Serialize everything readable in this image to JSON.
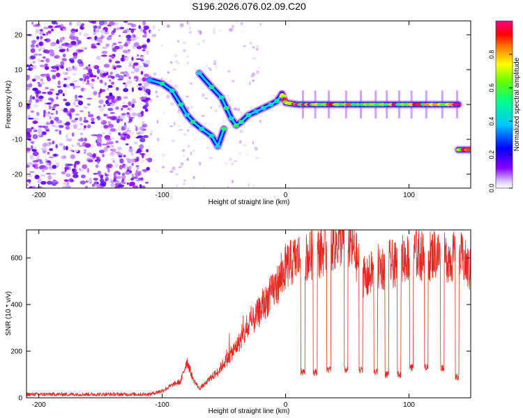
{
  "title": "S196.2026.076.02.09.C20",
  "chart_data": [
    {
      "type": "heatmap",
      "title": "S196.2026.076.02.09.C20",
      "xlabel": "Height of straight line (km)",
      "ylabel": "Frequency (Hz)",
      "xlim": [
        -210,
        150
      ],
      "ylim": [
        -24,
        24
      ],
      "xticks": [
        -200,
        -100,
        0,
        100
      ],
      "yticks": [
        -20,
        -10,
        0,
        10,
        20
      ],
      "colorbar": {
        "label": "Normalized spectral amplitude",
        "range": [
          0,
          1
        ],
        "ticks": [
          "0.0",
          "0.2",
          "0.4",
          "0.6",
          "0.8"
        ],
        "colors": [
          "#c8c8ff",
          "#8800ff",
          "#0000ff",
          "#00c8ff",
          "#00ff80",
          "#80ff00",
          "#ffff00",
          "#ff8000",
          "#ff0000",
          "#ff0088"
        ]
      },
      "noise_region": {
        "x_from": -210,
        "x_to": -110,
        "f_from": -24,
        "f_to": 24,
        "amplitude": 0.15
      },
      "tracks": [
        {
          "x": [
            -110,
            -100,
            -92,
            -85,
            -80,
            -75,
            -68,
            -60,
            -55,
            -50
          ],
          "f": [
            7,
            6,
            4,
            0,
            -3,
            -5,
            -7,
            -9,
            -12,
            -7
          ],
          "amplitude": 0.4
        },
        {
          "x": [
            -70,
            -60,
            -52,
            -48,
            -44,
            -40,
            -36,
            -30,
            -24,
            -18,
            -12,
            -7,
            -3
          ],
          "f": [
            9,
            5,
            2,
            -1,
            -4,
            -6,
            -5,
            -3,
            -2,
            -1,
            0,
            1,
            3
          ],
          "amplitude": 0.45
        },
        {
          "x": [
            -3,
            0,
            10,
            20,
            40,
            60,
            80,
            100,
            120,
            140
          ],
          "f": [
            3,
            0.5,
            0,
            0,
            0,
            0,
            0,
            0,
            0,
            0
          ],
          "amplitude": 0.85
        },
        {
          "x": [
            140,
            150
          ],
          "f": [
            -13,
            -13
          ],
          "amplitude": 0.85
        }
      ]
    },
    {
      "type": "line",
      "xlabel": "Height of straight line (km)",
      "ylabel": "SNR (10 * v/v)",
      "xlim": [
        -210,
        150
      ],
      "ylim": [
        0,
        720
      ],
      "xticks": [
        -200,
        -100,
        0,
        100
      ],
      "yticks": [
        0,
        200,
        400,
        600
      ],
      "line_color": "#e8261f",
      "x": [
        -210,
        -190,
        -170,
        -150,
        -130,
        -110,
        -100,
        -90,
        -85,
        -80,
        -75,
        -70,
        -65,
        -60,
        -55,
        -50,
        -45,
        -40,
        -35,
        -30,
        -25,
        -20,
        -15,
        -10,
        -5,
        0,
        5,
        10,
        15,
        20,
        25,
        30,
        35,
        40,
        45,
        50,
        55,
        60,
        65,
        70,
        75,
        80,
        85,
        90,
        95,
        100,
        105,
        110,
        115,
        120,
        125,
        130,
        135,
        140,
        145,
        150
      ],
      "y": [
        15,
        15,
        15,
        15,
        15,
        15,
        30,
        60,
        70,
        160,
        80,
        40,
        60,
        90,
        110,
        150,
        180,
        220,
        260,
        300,
        340,
        380,
        420,
        460,
        500,
        560,
        580,
        600,
        600,
        610,
        620,
        630,
        650,
        660,
        680,
        670,
        640,
        560,
        500,
        540,
        560,
        560,
        580,
        560,
        600,
        600,
        620,
        610,
        600,
        620,
        610,
        600,
        600,
        620,
        580,
        540
      ],
      "dropouts": [
        {
          "x": 14,
          "y": 110
        },
        {
          "x": 24,
          "y": 110
        },
        {
          "x": 35,
          "y": 120
        },
        {
          "x": 49,
          "y": 120
        },
        {
          "x": 61,
          "y": 120
        },
        {
          "x": 73,
          "y": 110
        },
        {
          "x": 82,
          "y": 100
        },
        {
          "x": 92,
          "y": 100
        },
        {
          "x": 102,
          "y": 130
        },
        {
          "x": 114,
          "y": 130
        },
        {
          "x": 127,
          "y": 130
        },
        {
          "x": 139,
          "y": 90
        }
      ]
    }
  ]
}
